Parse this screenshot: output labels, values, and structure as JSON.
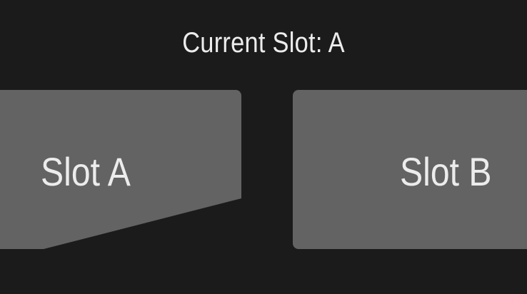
{
  "header": {
    "current_slot_text": "Current Slot: A"
  },
  "slots": {
    "a": {
      "label": "Slot A",
      "selected": true
    },
    "b": {
      "label": "Slot B",
      "selected": false
    }
  },
  "colors": {
    "background": "#1b1b1b",
    "card": "#636363",
    "text": "#ececec"
  }
}
